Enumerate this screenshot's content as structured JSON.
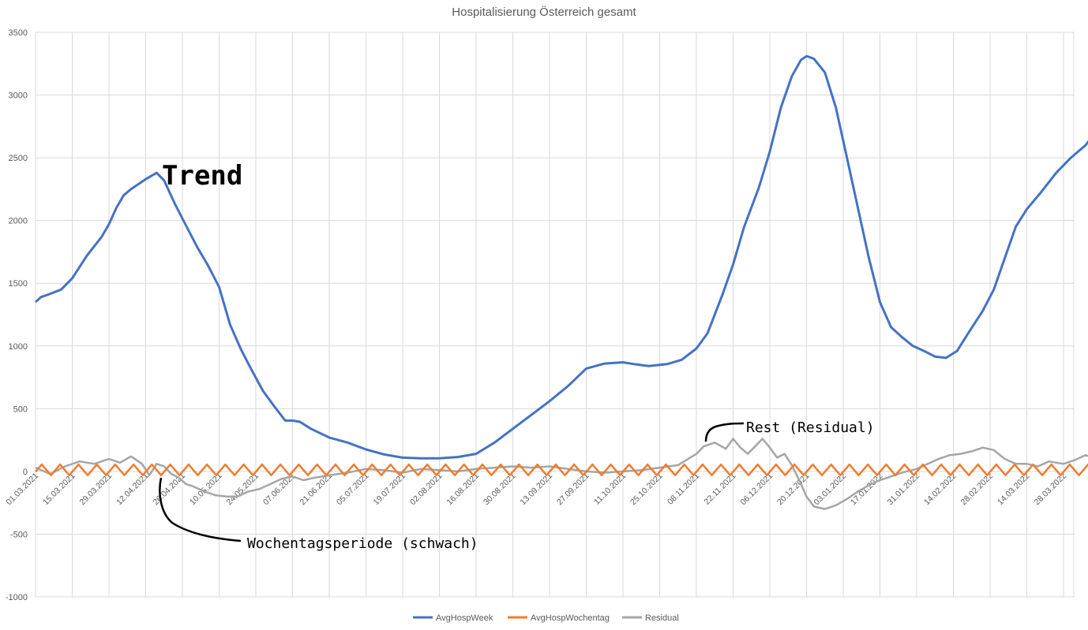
{
  "chart_data": {
    "type": "line",
    "title": "Hospitalisierung Österreich gesamt",
    "ylim": [
      -1000,
      3500
    ],
    "yticks": [
      -1000,
      -500,
      0,
      500,
      1000,
      1500,
      2000,
      2500,
      3000,
      3500
    ],
    "grid": true,
    "legend_position": "bottom",
    "categories": [
      "01.03.2021",
      "15.03.2021",
      "29.03.2021",
      "12.04.2021",
      "26.04.2021",
      "10.05.2021",
      "24.05.2021",
      "07.06.2021",
      "21.06.2021",
      "05.07.2021",
      "19.07.2021",
      "02.08.2021",
      "16.08.2021",
      "30.08.2021",
      "13.09.2021",
      "27.09.2021",
      "11.10.2021",
      "25.10.2021",
      "08.11.2021",
      "22.11.2021",
      "06.12.2021",
      "20.12.2021",
      "03.01.2022",
      "17.01.2022",
      "31.01.2022",
      "14.02.2022",
      "28.02.2022",
      "14.03.2022",
      "28.03.2022"
    ],
    "series": [
      {
        "name": "AvgHospWeek",
        "color": "#4472c4",
        "points": [
          [
            0,
            1350
          ],
          [
            0.15,
            1390
          ],
          [
            0.35,
            1410
          ],
          [
            0.7,
            1450
          ],
          [
            1,
            1540
          ],
          [
            1.4,
            1720
          ],
          [
            1.8,
            1870
          ],
          [
            2,
            1970
          ],
          [
            2.2,
            2100
          ],
          [
            2.4,
            2200
          ],
          [
            2.6,
            2250
          ],
          [
            3,
            2330
          ],
          [
            3.3,
            2380
          ],
          [
            3.5,
            2320
          ],
          [
            3.8,
            2130
          ],
          [
            4.1,
            1960
          ],
          [
            4.4,
            1790
          ],
          [
            4.7,
            1640
          ],
          [
            5,
            1470
          ],
          [
            5.3,
            1170
          ],
          [
            5.6,
            970
          ],
          [
            5.9,
            800
          ],
          [
            6.2,
            640
          ],
          [
            6.5,
            520
          ],
          [
            6.8,
            405
          ],
          [
            7,
            405
          ],
          [
            7.2,
            395
          ],
          [
            7.5,
            340
          ],
          [
            8,
            270
          ],
          [
            8.5,
            230
          ],
          [
            9,
            175
          ],
          [
            9.5,
            135
          ],
          [
            10,
            110
          ],
          [
            10.5,
            105
          ],
          [
            11,
            105
          ],
          [
            11.5,
            115
          ],
          [
            12,
            140
          ],
          [
            12.5,
            230
          ],
          [
            13,
            340
          ],
          [
            13.5,
            450
          ],
          [
            14,
            560
          ],
          [
            14.5,
            680
          ],
          [
            15,
            820
          ],
          [
            15.5,
            860
          ],
          [
            16,
            870
          ],
          [
            16.3,
            855
          ],
          [
            16.7,
            840
          ],
          [
            17.2,
            855
          ],
          [
            17.6,
            890
          ],
          [
            18,
            980
          ],
          [
            18.3,
            1100
          ],
          [
            18.7,
            1400
          ],
          [
            19,
            1650
          ],
          [
            19.3,
            1950
          ],
          [
            19.7,
            2260
          ],
          [
            20,
            2550
          ],
          [
            20.3,
            2900
          ],
          [
            20.6,
            3150
          ],
          [
            20.85,
            3280
          ],
          [
            21,
            3310
          ],
          [
            21.2,
            3290
          ],
          [
            21.5,
            3180
          ],
          [
            21.8,
            2900
          ],
          [
            22.1,
            2500
          ],
          [
            22.4,
            2100
          ],
          [
            22.7,
            1700
          ],
          [
            23,
            1350
          ],
          [
            23.3,
            1150
          ],
          [
            23.6,
            1070
          ],
          [
            23.9,
            1000
          ],
          [
            24.2,
            960
          ],
          [
            24.5,
            915
          ],
          [
            24.8,
            905
          ],
          [
            25.1,
            960
          ],
          [
            25.4,
            1100
          ],
          [
            25.8,
            1280
          ],
          [
            26.1,
            1450
          ],
          [
            26.4,
            1700
          ],
          [
            26.7,
            1950
          ],
          [
            27,
            2090
          ],
          [
            27.4,
            2230
          ],
          [
            27.8,
            2380
          ],
          [
            28.2,
            2500
          ],
          [
            28.6,
            2600
          ],
          [
            29,
            2750
          ],
          [
            29.4,
            2950
          ],
          [
            29.8,
            3110
          ],
          [
            30.2,
            3200
          ],
          [
            30.5,
            3230
          ]
        ]
      },
      {
        "name": "AvgHospWochentag",
        "color": "#ed7d31",
        "period": 0.5,
        "phase": 0.08,
        "min": -30,
        "max": 55
      },
      {
        "name": "Residual",
        "color": "#a5a5a5",
        "points": [
          [
            0,
            30
          ],
          [
            0.4,
            -20
          ],
          [
            0.8,
            40
          ],
          [
            1.2,
            80
          ],
          [
            1.6,
            60
          ],
          [
            2,
            100
          ],
          [
            2.3,
            70
          ],
          [
            2.6,
            120
          ],
          [
            2.9,
            60
          ],
          [
            3.1,
            -30
          ],
          [
            3.3,
            60
          ],
          [
            3.5,
            40
          ],
          [
            3.7,
            -20
          ],
          [
            3.9,
            -50
          ],
          [
            4.1,
            -100
          ],
          [
            4.3,
            -120
          ],
          [
            4.6,
            -160
          ],
          [
            4.9,
            -190
          ],
          [
            5.2,
            -200
          ],
          [
            5.5,
            -200
          ],
          [
            5.8,
            -160
          ],
          [
            6.1,
            -140
          ],
          [
            6.4,
            -100
          ],
          [
            6.7,
            -60
          ],
          [
            7,
            -40
          ],
          [
            7.3,
            -70
          ],
          [
            7.6,
            -50
          ],
          [
            8,
            -30
          ],
          [
            8.5,
            -10
          ],
          [
            9,
            20
          ],
          [
            9.5,
            10
          ],
          [
            10,
            -10
          ],
          [
            10.5,
            20
          ],
          [
            11,
            10
          ],
          [
            11.5,
            0
          ],
          [
            12,
            20
          ],
          [
            12.5,
            30
          ],
          [
            13,
            40
          ],
          [
            13.5,
            30
          ],
          [
            14,
            40
          ],
          [
            14.5,
            20
          ],
          [
            15,
            0
          ],
          [
            15.5,
            -10
          ],
          [
            16,
            0
          ],
          [
            16.5,
            10
          ],
          [
            17,
            30
          ],
          [
            17.5,
            50
          ],
          [
            18,
            140
          ],
          [
            18.2,
            200
          ],
          [
            18.5,
            230
          ],
          [
            18.8,
            180
          ],
          [
            19,
            260
          ],
          [
            19.2,
            190
          ],
          [
            19.4,
            140
          ],
          [
            19.6,
            200
          ],
          [
            19.8,
            260
          ],
          [
            20,
            190
          ],
          [
            20.2,
            110
          ],
          [
            20.4,
            140
          ],
          [
            20.6,
            50
          ],
          [
            20.8,
            -70
          ],
          [
            21.0,
            -200
          ],
          [
            21.2,
            -280
          ],
          [
            21.5,
            -300
          ],
          [
            21.8,
            -270
          ],
          [
            22.1,
            -220
          ],
          [
            22.4,
            -160
          ],
          [
            22.7,
            -110
          ],
          [
            23,
            -70
          ],
          [
            23.3,
            -40
          ],
          [
            23.6,
            -10
          ],
          [
            24,
            20
          ],
          [
            24.3,
            60
          ],
          [
            24.6,
            100
          ],
          [
            24.9,
            130
          ],
          [
            25.2,
            140
          ],
          [
            25.5,
            160
          ],
          [
            25.8,
            190
          ],
          [
            26.1,
            170
          ],
          [
            26.4,
            100
          ],
          [
            26.7,
            60
          ],
          [
            27,
            60
          ],
          [
            27.3,
            40
          ],
          [
            27.6,
            80
          ],
          [
            28,
            60
          ],
          [
            28.3,
            90
          ],
          [
            28.6,
            130
          ],
          [
            28.9,
            100
          ],
          [
            29.2,
            60
          ],
          [
            29.5,
            20
          ],
          [
            29.8,
            40
          ],
          [
            30.1,
            30
          ],
          [
            30.5,
            20
          ]
        ]
      }
    ],
    "annotations": [
      {
        "text": "Trend"
      },
      {
        "text": "Rest (Residual)"
      },
      {
        "text": "Wochentagsperiode (schwach)"
      }
    ]
  }
}
